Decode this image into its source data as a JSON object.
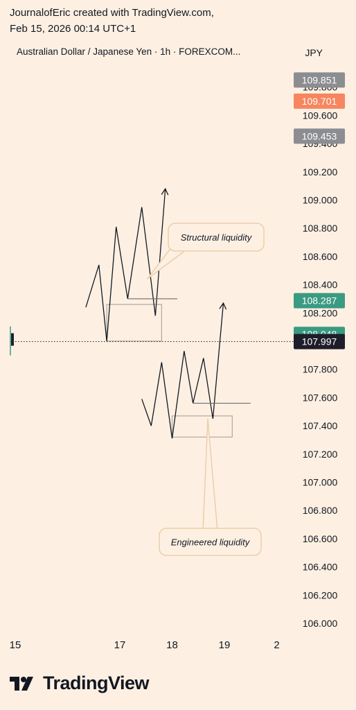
{
  "header": {
    "line1": "JournalofEric created with TradingView.com,",
    "line2": "Feb 15, 2026 00:14 UTC+1"
  },
  "symbol": {
    "title": "Australian Dollar / Japanese Yen · 1h · FOREXCOM...",
    "currency": "JPY"
  },
  "brand": {
    "name": "TradingView",
    "logo_icon": "tradingview-logo-icon"
  },
  "chart_data": {
    "type": "line",
    "title": "Australian Dollar / Japanese Yen · 1h · FOREXCOM...",
    "y_axis": {
      "ticks": [
        "109.800",
        "109.600",
        "109.400",
        "109.200",
        "109.000",
        "108.800",
        "108.600",
        "108.400",
        "108.200",
        "107.800",
        "107.600",
        "107.400",
        "107.200",
        "107.000",
        "106.800",
        "106.600",
        "106.400",
        "106.200",
        "106.000"
      ],
      "range": [
        105.95,
        110.0
      ]
    },
    "x_axis": {
      "ticks": [
        "15",
        "17",
        "18",
        "19",
        "2"
      ],
      "tick_days": [
        15,
        17,
        18,
        19,
        20
      ]
    },
    "x_range": [
      14.9,
      20.0
    ],
    "price_labels": [
      {
        "value": "109.851",
        "color": "#8b8d91"
      },
      {
        "value": "109.701",
        "color": "#f6865f"
      },
      {
        "value": "109.453",
        "color": "#8b8d91"
      },
      {
        "value": "108.287",
        "color": "#3a9a82"
      },
      {
        "value": "108.048",
        "color": "#3a9a82"
      },
      {
        "value": "107.997",
        "color": "#1e1e2a"
      }
    ],
    "last_price": 107.997,
    "drawings": [
      {
        "name": "structural-zigzag",
        "points": [
          [
            16.35,
            108.24
          ],
          [
            16.6,
            108.54
          ],
          [
            16.75,
            108.0
          ],
          [
            16.93,
            108.81
          ],
          [
            17.15,
            108.3
          ],
          [
            17.42,
            108.95
          ],
          [
            17.68,
            108.18
          ],
          [
            17.87,
            109.08
          ]
        ],
        "arrow": true
      },
      {
        "name": "structural-level",
        "points": [
          [
            17.15,
            108.3
          ],
          [
            18.1,
            108.3
          ]
        ]
      },
      {
        "name": "engineered-zigzag",
        "points": [
          [
            17.42,
            107.59
          ],
          [
            17.6,
            107.4
          ],
          [
            17.8,
            107.85
          ],
          [
            18.0,
            107.31
          ],
          [
            18.23,
            107.93
          ],
          [
            18.4,
            107.56
          ],
          [
            18.6,
            107.88
          ],
          [
            18.78,
            107.45
          ],
          [
            18.98,
            108.27
          ]
        ],
        "arrow": true
      },
      {
        "name": "engineered-level",
        "points": [
          [
            18.4,
            107.56
          ],
          [
            19.5,
            107.56
          ]
        ]
      }
    ],
    "zones": [
      {
        "name": "structural-zone",
        "x": [
          16.75,
          17.8
        ],
        "y": [
          108.0,
          108.26
        ]
      },
      {
        "name": "engineered-zone",
        "x": [
          18.0,
          19.15
        ],
        "y": [
          107.32,
          107.47
        ]
      }
    ],
    "callouts": [
      {
        "text": "Structural liquidity",
        "color": "#e9cfa8"
      },
      {
        "text": "Engineered liquidity",
        "color": "#e9cfa8"
      }
    ],
    "grid": false,
    "colors": {
      "background": "#fdf0e2",
      "line": "#131722",
      "zone": "#b0a89c",
      "callout_border": "#e9cfa8",
      "callout_fill": "#fdf0e2"
    }
  }
}
